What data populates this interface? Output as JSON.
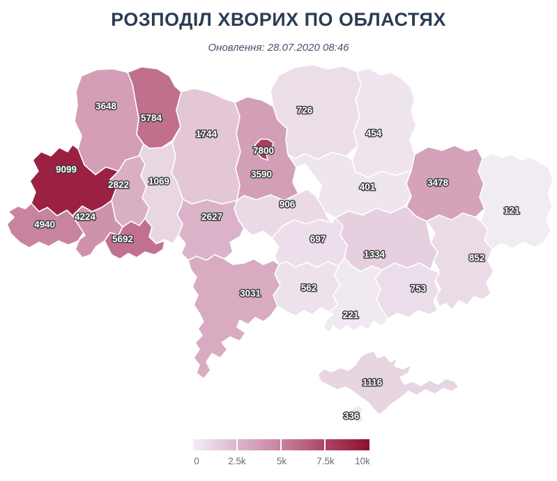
{
  "header": {
    "title": "РОЗПОДІЛ ХВОРИХ ПО ОБЛАСТЯХ",
    "subtitle": "Оновлення: 28.07.2020 08:46"
  },
  "legend": {
    "ticks": [
      "0",
      "2.5k",
      "5k",
      "7.5k",
      "10k"
    ]
  },
  "color_scale": {
    "domain": [
      0,
      2500,
      5000,
      7500,
      10000
    ],
    "stops": [
      "#f2eef6",
      "#dcb6ca",
      "#c8829f",
      "#ae4465",
      "#8f0e2f"
    ]
  },
  "chart_data": {
    "type": "heatmap",
    "subtype": "choropleth-map",
    "geography": "Ukraine regions (oblasts)",
    "title": "РОЗПОДІЛ ХВОРИХ ПО ОБЛАСТЯХ",
    "updated": "28.07.2020 08:46",
    "value_range": [
      0,
      10000
    ],
    "legend_position": "bottom-center",
    "regions": [
      {
        "id": "volyn",
        "value": 3648
      },
      {
        "id": "rivne",
        "value": 5784
      },
      {
        "id": "zhytomyr",
        "value": 1744
      },
      {
        "id": "chernihiv",
        "value": 726
      },
      {
        "id": "sumy",
        "value": 454
      },
      {
        "id": "kyiv-oblast",
        "value": 3590
      },
      {
        "id": "kyiv-city",
        "value": 7800
      },
      {
        "id": "lviv",
        "value": 9099
      },
      {
        "id": "ternopil",
        "value": 2822
      },
      {
        "id": "khmelnytskyi",
        "value": 1069
      },
      {
        "id": "zakarpattia",
        "value": 4940
      },
      {
        "id": "ivano-frankivsk",
        "value": 4224
      },
      {
        "id": "chernivtsi",
        "value": 5692
      },
      {
        "id": "vinnytsia",
        "value": 2627
      },
      {
        "id": "poltava",
        "value": 401
      },
      {
        "id": "kharkiv",
        "value": 3478
      },
      {
        "id": "luhansk",
        "value": 121
      },
      {
        "id": "cherkasy",
        "value": 906
      },
      {
        "id": "kirovohrad",
        "value": 697
      },
      {
        "id": "dnipropetrovsk",
        "value": 1334
      },
      {
        "id": "donetsk",
        "value": 852
      },
      {
        "id": "zaporizhzhia",
        "value": 753
      },
      {
        "id": "mykolaiv",
        "value": 562
      },
      {
        "id": "kherson",
        "value": 221
      },
      {
        "id": "odesa",
        "value": 3031
      },
      {
        "id": "crimea",
        "value": 1116
      },
      {
        "id": "sevastopol",
        "value": 336
      }
    ]
  }
}
